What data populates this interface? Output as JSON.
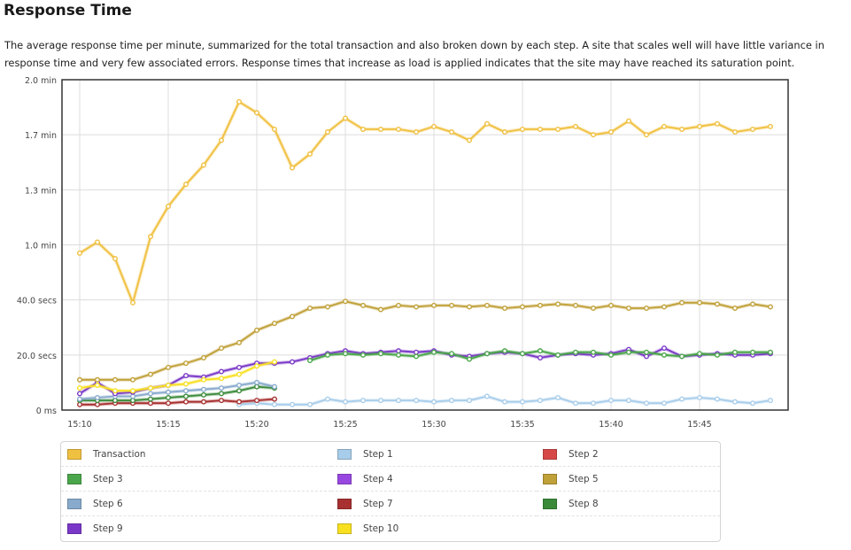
{
  "page": {
    "title": "Response Time",
    "description": "The average response time per minute, summarized for the total transaction and also broken down by each step. A site that scales well will have little variance in response time and very few associated errors. Response times that increase as load is applied indicates that the site may have reached its saturation point."
  },
  "chart_data": {
    "type": "line",
    "title": "Response Time",
    "xlabel": "",
    "ylabel": "",
    "x_unit": "minute",
    "y_unit": "seconds",
    "xlim": [
      "15:10",
      "15:50"
    ],
    "ylim": [
      0,
      120
    ],
    "grid": true,
    "legend_position": "bottom",
    "x_tick_labels": [
      "15:10",
      "15:15",
      "15:20",
      "15:25",
      "15:30",
      "15:35",
      "15:40",
      "15:45"
    ],
    "y_ticks": [
      {
        "value": 0,
        "label": "0 ms"
      },
      {
        "value": 20,
        "label": "20.0 secs"
      },
      {
        "value": 40,
        "label": "40.0 secs"
      },
      {
        "value": 60,
        "label": "1.0 min"
      },
      {
        "value": 80,
        "label": "1.3 min"
      },
      {
        "value": 100,
        "label": "1.7 min"
      },
      {
        "value": 120,
        "label": "2.0 min"
      }
    ],
    "x": [
      "15:10",
      "15:11",
      "15:12",
      "15:13",
      "15:14",
      "15:15",
      "15:16",
      "15:17",
      "15:18",
      "15:19",
      "15:20",
      "15:21",
      "15:22",
      "15:23",
      "15:24",
      "15:25",
      "15:26",
      "15:27",
      "15:28",
      "15:29",
      "15:30",
      "15:31",
      "15:32",
      "15:33",
      "15:34",
      "15:35",
      "15:36",
      "15:37",
      "15:38",
      "15:39",
      "15:40",
      "15:41",
      "15:42",
      "15:43",
      "15:44",
      "15:45",
      "15:46",
      "15:47",
      "15:48",
      "15:49"
    ],
    "series": [
      {
        "name": "Transaction",
        "color": "#f0c040",
        "values": [
          57,
          61,
          55,
          39,
          63,
          74,
          82,
          89,
          98,
          112,
          108,
          102,
          88,
          93,
          101,
          106,
          102,
          102,
          102,
          101,
          103,
          101,
          98,
          104,
          101,
          102,
          102,
          102,
          103,
          100,
          101,
          105,
          100,
          103,
          102,
          103,
          104,
          101,
          102,
          103
        ]
      },
      {
        "name": "Step 1",
        "color": "#a8cdea",
        "values": [
          null,
          null,
          null,
          null,
          null,
          null,
          null,
          null,
          null,
          2.0,
          2.5,
          2.0,
          2.0,
          2.0,
          4.0,
          3.0,
          3.5,
          3.5,
          3.5,
          3.5,
          3.0,
          3.5,
          3.5,
          5.0,
          3.0,
          3.0,
          3.5,
          4.5,
          2.5,
          2.5,
          3.5,
          3.5,
          2.5,
          2.5,
          4.0,
          4.5,
          4.0,
          3.0,
          2.5,
          3.5
        ]
      },
      {
        "name": "Step 2",
        "color": "#d64848",
        "values": [
          null,
          null,
          null,
          null,
          null,
          null,
          null,
          null,
          null,
          null,
          null,
          null,
          null,
          null,
          null,
          null,
          null,
          null,
          null,
          null,
          null,
          null,
          null,
          null,
          null,
          null,
          null,
          null,
          null,
          null,
          null,
          null,
          null,
          null,
          null,
          null,
          null,
          null,
          null,
          null
        ]
      },
      {
        "name": "Step 3",
        "color": "#4aa64a",
        "values": [
          null,
          null,
          null,
          null,
          null,
          null,
          null,
          null,
          null,
          null,
          null,
          null,
          null,
          18.0,
          20.0,
          20.5,
          20.0,
          20.5,
          20.0,
          19.5,
          21.0,
          20.5,
          18.5,
          20.5,
          21.5,
          20.5,
          21.5,
          20.0,
          21.0,
          21.0,
          20.0,
          21.0,
          21.0,
          20.0,
          19.5,
          20.5,
          20.0,
          21.0,
          21.0,
          21.0
        ]
      },
      {
        "name": "Step 4",
        "color": "#9848e0",
        "values": [
          null,
          null,
          null,
          null,
          null,
          null,
          null,
          null,
          null,
          null,
          null,
          null,
          null,
          null,
          null,
          null,
          null,
          null,
          null,
          null,
          null,
          null,
          null,
          null,
          null,
          null,
          null,
          null,
          null,
          null,
          null,
          null,
          null,
          null,
          null,
          null,
          null,
          null,
          null,
          null
        ]
      },
      {
        "name": "Step 5",
        "color": "#c0a038",
        "values": [
          11.0,
          11.0,
          11.0,
          11.0,
          13.0,
          15.5,
          17.0,
          19.0,
          22.5,
          24.5,
          29.0,
          31.5,
          34.0,
          37.0,
          37.5,
          39.5,
          38.0,
          36.5,
          38.0,
          37.5,
          38.0,
          38.0,
          37.5,
          38.0,
          37.0,
          37.5,
          38.0,
          38.5,
          38.0,
          37.0,
          38.0,
          37.0,
          37.0,
          37.5,
          39.0,
          39.0,
          38.5,
          37.0,
          38.5,
          37.5
        ]
      },
      {
        "name": "Step 6",
        "color": "#88aacc",
        "values": [
          4.0,
          4.5,
          5.0,
          5.0,
          6.0,
          6.5,
          7.0,
          7.5,
          8.0,
          9.0,
          10.0,
          8.5,
          null,
          null,
          null,
          null,
          null,
          null,
          null,
          null,
          null,
          null,
          null,
          null,
          null,
          null,
          null,
          null,
          null,
          null,
          null,
          null,
          null,
          null,
          null,
          null,
          null,
          null,
          null,
          null
        ]
      },
      {
        "name": "Step 7",
        "color": "#a83030",
        "values": [
          2.0,
          2.0,
          2.5,
          2.5,
          2.5,
          2.5,
          3.0,
          3.0,
          3.5,
          3.0,
          3.5,
          4.0,
          null,
          null,
          null,
          null,
          null,
          null,
          null,
          null,
          null,
          null,
          null,
          null,
          null,
          null,
          null,
          null,
          null,
          null,
          null,
          null,
          null,
          null,
          null,
          null,
          null,
          null,
          null,
          null
        ]
      },
      {
        "name": "Step 8",
        "color": "#3a8a3a",
        "values": [
          3.5,
          3.5,
          3.5,
          3.5,
          4.0,
          4.5,
          5.0,
          5.5,
          6.0,
          7.0,
          8.5,
          8.0,
          null,
          null,
          null,
          null,
          null,
          null,
          null,
          null,
          null,
          null,
          null,
          null,
          null,
          null,
          null,
          null,
          null,
          null,
          null,
          null,
          null,
          null,
          null,
          null,
          null,
          null,
          null,
          null
        ]
      },
      {
        "name": "Step 9",
        "color": "#7a38c8",
        "values": [
          6.0,
          10.0,
          6.0,
          6.5,
          8.0,
          9.0,
          12.5,
          12.0,
          14.0,
          15.5,
          17.0,
          17.0,
          17.5,
          19.0,
          20.5,
          21.5,
          20.5,
          21.0,
          21.5,
          21.0,
          21.5,
          20.0,
          19.5,
          20.5,
          21.0,
          20.5,
          19.0,
          20.0,
          20.5,
          20.0,
          20.5,
          22.0,
          19.5,
          22.5,
          19.5,
          20.0,
          20.5,
          20.0,
          20.0,
          20.5
        ]
      },
      {
        "name": "Step 10",
        "color": "#f8e020",
        "values": [
          8.0,
          9.0,
          7.0,
          7.0,
          8.0,
          9.0,
          9.5,
          11.0,
          11.5,
          13.0,
          16.0,
          17.5,
          null,
          null,
          null,
          null,
          null,
          null,
          null,
          null,
          null,
          null,
          null,
          null,
          null,
          null,
          null,
          null,
          null,
          null,
          null,
          null,
          null,
          null,
          null,
          null,
          null,
          null,
          null,
          null
        ]
      }
    ]
  },
  "legend": {
    "items": [
      {
        "label": "Transaction",
        "color": "#f0c040"
      },
      {
        "label": "Step 1",
        "color": "#a8cdea"
      },
      {
        "label": "Step 2",
        "color": "#d64848"
      },
      {
        "label": "Step 3",
        "color": "#4aa64a"
      },
      {
        "label": "Step 4",
        "color": "#9848e0"
      },
      {
        "label": "Step 5",
        "color": "#c0a038"
      },
      {
        "label": "Step 6",
        "color": "#88aacc"
      },
      {
        "label": "Step 7",
        "color": "#a83030"
      },
      {
        "label": "Step 8",
        "color": "#3a8a3a"
      },
      {
        "label": "Step 9",
        "color": "#7a38c8"
      },
      {
        "label": "Step 10",
        "color": "#f8e020"
      }
    ]
  }
}
